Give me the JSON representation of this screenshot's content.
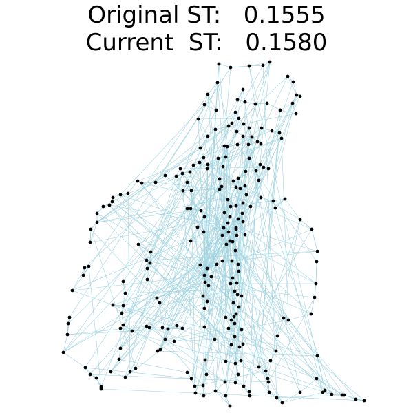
{
  "title": {
    "line1": "Original ST:   0.1555",
    "line2": "Current  ST:   0.1580"
  },
  "graph": {
    "type": "network",
    "edge_color": "#9fd3e0",
    "node_color": "#000000"
  }
}
